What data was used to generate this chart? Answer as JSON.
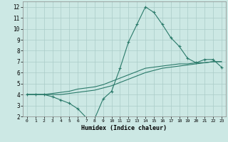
{
  "xlabel": "Humidex (Indice chaleur)",
  "background_color": "#cce8e4",
  "grid_color": "#aaccc8",
  "line_color": "#2a7a6a",
  "xlim": [
    -0.5,
    23.5
  ],
  "ylim": [
    2,
    12.5
  ],
  "xticks": [
    0,
    1,
    2,
    3,
    4,
    5,
    6,
    7,
    8,
    9,
    10,
    11,
    12,
    13,
    14,
    15,
    16,
    17,
    18,
    19,
    20,
    21,
    22,
    23
  ],
  "yticks": [
    2,
    3,
    4,
    5,
    6,
    7,
    8,
    9,
    10,
    11,
    12
  ],
  "line1_x": [
    0,
    1,
    2,
    3,
    4,
    5,
    6,
    7,
    8,
    9,
    10,
    11,
    12,
    13,
    14,
    15,
    16,
    17,
    18,
    19,
    20,
    21,
    22,
    23
  ],
  "line1_y": [
    4.0,
    4.0,
    4.0,
    3.8,
    3.5,
    3.2,
    2.7,
    1.9,
    1.8,
    3.6,
    4.3,
    6.4,
    8.8,
    10.4,
    12.0,
    11.5,
    10.4,
    9.2,
    8.4,
    7.3,
    6.9,
    7.2,
    7.2,
    6.5
  ],
  "line2_x": [
    0,
    1,
    2,
    3,
    4,
    5,
    6,
    7,
    8,
    9,
    10,
    11,
    12,
    13,
    14,
    15,
    16,
    17,
    18,
    19,
    20,
    21,
    22,
    23
  ],
  "line2_y": [
    4.0,
    4.0,
    4.0,
    4.0,
    4.0,
    4.1,
    4.2,
    4.3,
    4.4,
    4.6,
    4.8,
    5.1,
    5.4,
    5.7,
    6.0,
    6.2,
    6.4,
    6.5,
    6.6,
    6.7,
    6.8,
    6.9,
    7.0,
    7.0
  ],
  "line3_x": [
    0,
    1,
    2,
    3,
    4,
    5,
    6,
    7,
    8,
    9,
    10,
    11,
    12,
    13,
    14,
    15,
    16,
    17,
    18,
    19,
    20,
    21,
    22,
    23
  ],
  "line3_y": [
    4.0,
    4.0,
    4.0,
    4.1,
    4.2,
    4.3,
    4.5,
    4.6,
    4.7,
    4.9,
    5.2,
    5.5,
    5.8,
    6.1,
    6.4,
    6.5,
    6.6,
    6.7,
    6.8,
    6.8,
    6.9,
    6.9,
    7.0,
    7.0
  ]
}
